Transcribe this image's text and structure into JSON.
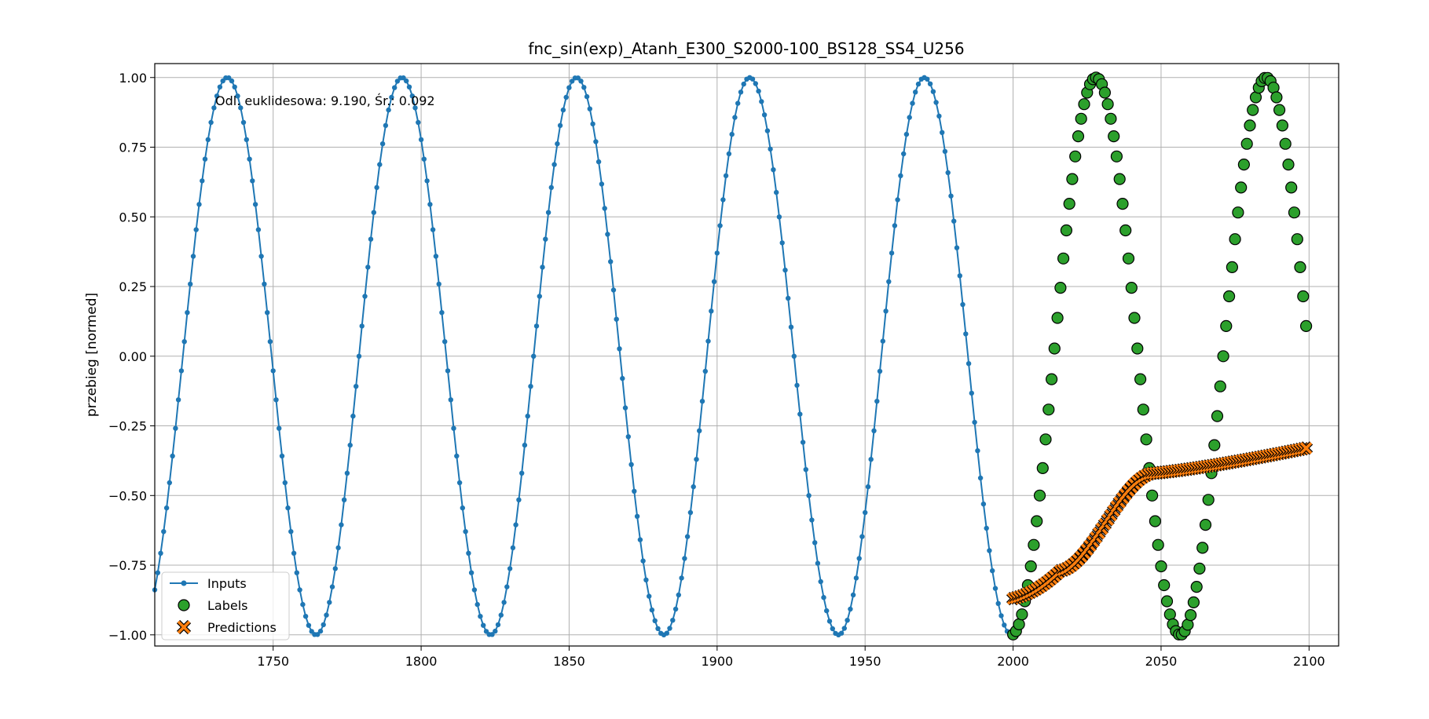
{
  "chart_data": {
    "type": "scatter",
    "title": "fnc_sin(exp)_Atanh_E300_S2000-100_BS128_SS4_U256",
    "xlabel": "",
    "ylabel": "przebieg [normed]",
    "xlim": [
      1710,
      2110
    ],
    "ylim": [
      -1.04,
      1.05
    ],
    "grid": true,
    "legend_placement": "lower-left",
    "x_ticks": [
      "1750",
      "1800",
      "1850",
      "1900",
      "1950",
      "2000",
      "2050",
      "2100"
    ],
    "y_ticks": [
      "1.00",
      "0.75",
      "0.50",
      "0.25",
      "0.00",
      "−0.25",
      "−0.50",
      "−0.75",
      "−1.00"
    ],
    "annotation": "Odl. euklidesowa: 9.190, Śr.: 0.092",
    "series": [
      {
        "name": "Inputs",
        "kind": "line-with-markers",
        "color": "#1f77b4",
        "x_start": 1710,
        "x_end": 1999,
        "peaks_x": [
          1734.5,
          1793.5,
          1852.5,
          1911,
          1970
        ],
        "troughs_x": [
          1764.5,
          1823.5,
          1882,
          1941,
          1999.5
        ],
        "amplitude": 1.0
      },
      {
        "name": "Labels",
        "kind": "scatter",
        "color": "#2ca02c",
        "edge_color": "#000000",
        "x_start": 2000,
        "x_end": 2099,
        "peaks_x": [
          2028,
          2085.5
        ],
        "troughs_x": [
          2056.5
        ],
        "amplitude": 1.0
      },
      {
        "name": "Predictions",
        "kind": "scatter-x",
        "color": "#ff7f0e",
        "edge_color": "#000000",
        "x_start": 2000,
        "x_end": 2099,
        "y_start": -0.87,
        "y_knee_x": 2016,
        "y_knee": -0.77,
        "y_shoulder_x": 2047,
        "y_shoulder": -0.42,
        "y_end": -0.33
      }
    ]
  }
}
